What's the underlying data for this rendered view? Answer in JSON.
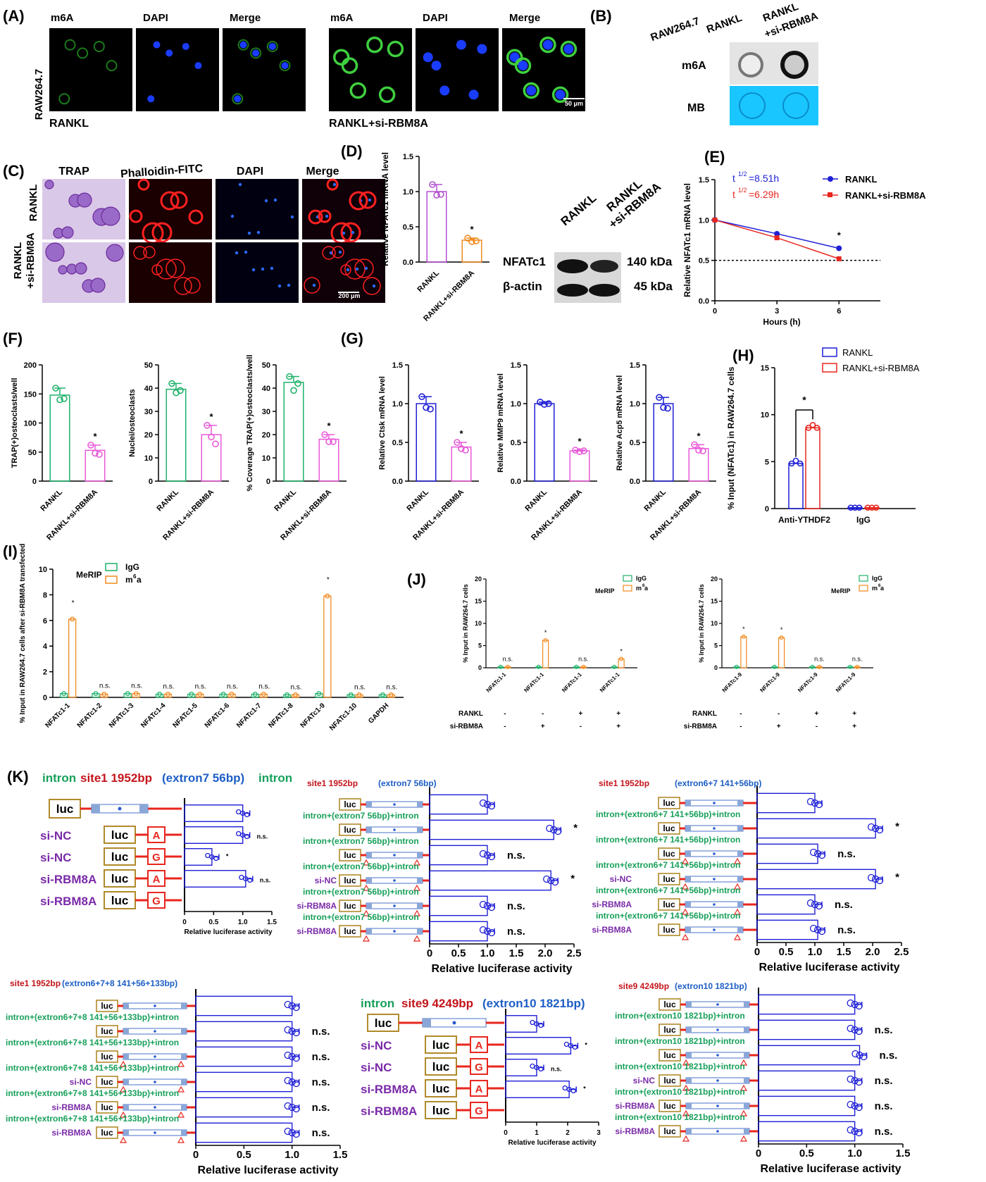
{
  "colors": {
    "blue": "#1f1fd6",
    "red": "#e8261e",
    "green": "#1fb26b",
    "violet": "#b34fd1",
    "orange": "#f08a1e",
    "pink": "#e85ad8",
    "purple": "#7a2aa8",
    "navy": "#1d5ec5",
    "teal": "#17a05a",
    "darkred": "#c4141b",
    "tan": "#b08a2a"
  },
  "common": {
    "rankl": "RANKL",
    "rankl_si": "RANKL+si-RBM8A",
    "si_nc": "si-NC",
    "si_rbm8a": "si-RBM8A",
    "luc": "luc",
    "allele_a": "A",
    "allele_g": "G",
    "star": "*",
    "ns": "n.s.",
    "luc_axis": "Relative luciferase activity",
    "plus": "+",
    "minus": "-",
    "ap": "RANKL",
    "as": "si-RBM8A"
  },
  "panelA": {
    "label": "(A)",
    "cell_line": "RAW264.7",
    "m6a": "m6A",
    "dapi": "DAPI",
    "merge": "Merge",
    "group1": "RANKL",
    "group2": "RANKL+si-RBM8A",
    "scale": "50 μm"
  },
  "panelB": {
    "label": "(B)",
    "cell_line": "RAW264.7",
    "col1": "RANKL",
    "col2a": "RANKL",
    "col2b": "+si-RBM8A",
    "row1": "m6A",
    "row2": "MB"
  },
  "panelC": {
    "label": "(C)",
    "trap": "TRAP",
    "phalloidin": "Phalloidin-FITC",
    "dapi": "DAPI",
    "merge": "Merge",
    "row1": "RANKL",
    "row2a": "RANKL",
    "row2b": "+si-RBM8A",
    "scale": "200 μm"
  },
  "panelD": {
    "label": "(D)",
    "wb_protein": "NFATc1",
    "wb_actin": "β-actin",
    "kda1": "140 kDa",
    "kda2": "45 kDa",
    "wb_col1": "RANKL",
    "wb_col2a": "RANKL",
    "wb_col2b": "+si-RBM8A"
  },
  "panelE": {
    "label": "(E)",
    "ann1": "t<sup>1/2</sup>=8.51h",
    "ann1_base": "t",
    "ann1_sup": "1/2",
    "ann1_val": "=8.51h",
    "ann2_base": "t",
    "ann2_sup": "1/2",
    "ann2_val": "=6.29h"
  },
  "panelF": {
    "label": "(F)"
  },
  "panelG": {
    "label": "(G)"
  },
  "panelH": {
    "label": "(H)"
  },
  "panelI": {
    "label": "(I)",
    "merip": "MeRIP",
    "igg": "IgG",
    "m6a_base": "m",
    "m6a_sup": "6",
    "m6a_tail": "a"
  },
  "panelJ": {
    "label": "(J)"
  },
  "panelK": {
    "label": "(K)",
    "h1_intron1": "intron",
    "h1_site": "site1 1952bp",
    "h1_ex": "(extron7 56bp)",
    "h1_intron2": "intron",
    "h2_site": "site1 1952bp",
    "h2_ex": "(extron7 56bp)",
    "h3_site": "site1 1952bp",
    "h3_ex": "(extron6+7 141+56bp)",
    "h4_site": "site1 1952bp",
    "h4_ex": "(extron6+7+8 141+56+133bp)",
    "h5_intron": "intron",
    "h5_site": "site9 4249bp",
    "h5_ex": "(extron10 1821bp)",
    "h6_site": "site9 4249bp",
    "h6_ex": "(extron10 1821bp)",
    "int7": "intron+(extron7 56bp)+intron",
    "int67": "intron+(extron6+7 141+56bp)+intron",
    "int678": "intron+(extron6+7+8 141+56+133bp)+intron",
    "int10": "intron+(extron10 1821bp)+intron"
  },
  "chart_data": [
    {
      "id": "D",
      "type": "bar",
      "categories": [
        "RANKL",
        "RANKL+si-RBM8A"
      ],
      "values": [
        1.0,
        0.31
      ],
      "points": [
        [
          1.1,
          0.95,
          0.96
        ],
        [
          0.34,
          0.29,
          0.3
        ]
      ],
      "ylabel": "Relative NFATc1 mRNA level",
      "ylim": [
        0,
        1.5
      ],
      "ticks": [
        "0.0",
        "0.5",
        "1.0",
        "1.5"
      ],
      "sig": [
        "",
        "*"
      ]
    },
    {
      "id": "E",
      "type": "line",
      "x": [
        0,
        3,
        6
      ],
      "series": [
        {
          "name": "RANKL",
          "values": [
            1.0,
            0.83,
            0.65
          ]
        },
        {
          "name": "RANKL+si-RBM8A",
          "values": [
            1.0,
            0.78,
            0.52
          ]
        }
      ],
      "xlabel": "Hours (h)",
      "ylabel": "Relative NFATc1 mRNA level",
      "ylim": [
        0,
        1.5
      ],
      "xticks": [
        "0",
        "3",
        "6"
      ],
      "yticks": [
        "0.0",
        "0.5",
        "1.0",
        "1.5"
      ],
      "sig": "*"
    },
    {
      "id": "F1",
      "type": "bar",
      "categories": [
        "RANKL",
        "RANKL+si-RBM8A"
      ],
      "values": [
        148,
        53
      ],
      "points": [
        [
          160,
          140,
          142
        ],
        [
          62,
          48,
          46
        ]
      ],
      "ylabel": "TRAP(+)osteoclasts/well",
      "ylim": [
        0,
        200
      ],
      "ticks": [
        "0",
        "50",
        "100",
        "150",
        "200"
      ],
      "sig": [
        "",
        "*"
      ]
    },
    {
      "id": "F2",
      "type": "bar",
      "categories": [
        "RANKL",
        "RANKL+si-RBM8A"
      ],
      "values": [
        39.5,
        20
      ],
      "points": [
        [
          42,
          38,
          39
        ],
        [
          24,
          19,
          16
        ]
      ],
      "ylabel": "Nuclei/osteoclasts",
      "ylim": [
        0,
        50
      ],
      "ticks": [
        "0",
        "10",
        "20",
        "30",
        "40",
        "50"
      ],
      "sig": [
        "",
        "*"
      ]
    },
    {
      "id": "F3",
      "type": "bar",
      "categories": [
        "RANKL",
        "RANKL+si-RBM8A"
      ],
      "values": [
        42.5,
        18
      ],
      "points": [
        [
          45,
          39,
          42
        ],
        [
          20,
          17,
          17
        ]
      ],
      "ylabel": "% Coverage TRAP(+)osteoclasts/well",
      "ylim": [
        0,
        50
      ],
      "ticks": [
        "0",
        "10",
        "20",
        "30",
        "40",
        "50"
      ],
      "sig": [
        "",
        "*"
      ]
    },
    {
      "id": "G1",
      "type": "bar",
      "categories": [
        "RANKL",
        "RANKL+si-RBM8A"
      ],
      "values": [
        1.0,
        0.44
      ],
      "points": [
        [
          1.09,
          0.95,
          0.93
        ],
        [
          0.5,
          0.42,
          0.4
        ]
      ],
      "ylabel": "Relative Ctsk mRNA level",
      "ylim": [
        0,
        1.5
      ],
      "ticks": [
        "0.0",
        "0.5",
        "1.0",
        "1.5"
      ],
      "sig": [
        "",
        "*"
      ]
    },
    {
      "id": "G2",
      "type": "bar",
      "categories": [
        "RANKL",
        "RANKL+si-RBM8A"
      ],
      "values": [
        1.0,
        0.39
      ],
      "points": [
        [
          1.02,
          0.99,
          1.0
        ],
        [
          0.4,
          0.38,
          0.39
        ]
      ],
      "ylabel": "Relative MMP9 mRNA level",
      "ylim": [
        0,
        1.5
      ],
      "ticks": [
        "0.0",
        "0.5",
        "1.0",
        "1.5"
      ],
      "sig": [
        "",
        "*"
      ]
    },
    {
      "id": "G3",
      "type": "bar",
      "categories": [
        "RANKL",
        "RANKL+si-RBM8A"
      ],
      "values": [
        1.0,
        0.42
      ],
      "points": [
        [
          1.08,
          0.95,
          0.94
        ],
        [
          0.47,
          0.4,
          0.39
        ]
      ],
      "ylabel": "Relative Acp5 mRNA level",
      "ylim": [
        0,
        1.5
      ],
      "ticks": [
        "0.0",
        "0.5",
        "1.0",
        "1.5"
      ],
      "sig": [
        "",
        "*"
      ]
    },
    {
      "id": "H",
      "type": "bar",
      "categories": [
        "Anti-YTHDF2",
        "IgG"
      ],
      "series": [
        {
          "name": "RANKL",
          "values": [
            4.8,
            0.1
          ]
        },
        {
          "name": "RANKL+si-RBM8A",
          "values": [
            8.6,
            0.1
          ]
        }
      ],
      "ylabel": "% Input (NFATc1) in RAW264.7 cells",
      "ylim": [
        0,
        15
      ],
      "ticks": [
        "0",
        "5",
        "10",
        "15"
      ],
      "sig": "*"
    },
    {
      "id": "I",
      "type": "bar",
      "categories": [
        "NFATc1-1",
        "NFATc1-2",
        "NFATc1-3",
        "NFATc1-4",
        "NFATc1-5",
        "NFATc1-6",
        "NFATc1-7",
        "NFATc1-8",
        "NFATc1-9",
        "NFATc1-10",
        "GAPDH"
      ],
      "series": [
        {
          "name": "IgG",
          "values": [
            0.3,
            0.3,
            0.3,
            0.25,
            0.25,
            0.25,
            0.25,
            0.2,
            0.3,
            0.2,
            0.2
          ]
        },
        {
          "name": "m6a",
          "values": [
            6.1,
            0.25,
            0.3,
            0.25,
            0.25,
            0.25,
            0.25,
            0.2,
            7.9,
            0.2,
            0.2
          ]
        }
      ],
      "ylabel": "% Input in RAW264.7 cells after si-RBM8A transfected",
      "ylim": [
        0,
        10
      ],
      "ticks": [
        "0",
        "2",
        "4",
        "6",
        "8",
        "10"
      ],
      "sig": [
        "*",
        "n.s.",
        "n.s.",
        "n.s.",
        "n.s.",
        "n.s.",
        "n.s.",
        "n.s.",
        "*",
        "n.s.",
        "n.s."
      ]
    },
    {
      "id": "J1",
      "type": "bar",
      "categories": [
        "NFATc1-1",
        "NFATc1-1",
        "NFATc1-1",
        "NFATc1-1"
      ],
      "series": [
        {
          "name": "IgG",
          "values": [
            0.2,
            0.2,
            0.2,
            0.2
          ]
        },
        {
          "name": "m6a",
          "values": [
            0.2,
            6.2,
            0.2,
            2.0
          ]
        }
      ],
      "ylabel": "% Input in RAW264.7 cells",
      "ylim": [
        0,
        20
      ],
      "ticks": [
        "0",
        "5",
        "10",
        "15",
        "20"
      ],
      "rankl": [
        "-",
        "-",
        "+",
        "+"
      ],
      "si": [
        "-",
        "+",
        "-",
        "+"
      ],
      "sig": [
        "n.s.",
        "*",
        "n.s.",
        "*"
      ]
    },
    {
      "id": "J2",
      "type": "bar",
      "categories": [
        "NFATc1-9",
        "NFATc1-9",
        "NFATc1-9",
        "NFATc1-9"
      ],
      "series": [
        {
          "name": "IgG",
          "values": [
            0.2,
            0.2,
            0.2,
            0.2
          ]
        },
        {
          "name": "m6a",
          "values": [
            7.0,
            6.8,
            0.2,
            0.2
          ]
        }
      ],
      "ylabel": "% Input in RAW264.7 cells",
      "ylim": [
        0,
        20
      ],
      "ticks": [
        "0",
        "5",
        "10",
        "15",
        "20"
      ],
      "rankl": [
        "-",
        "-",
        "+",
        "+"
      ],
      "si": [
        "-",
        "+",
        "-",
        "+"
      ],
      "sig": [
        "*",
        "*",
        "n.s.",
        "n.s."
      ]
    },
    {
      "id": "K1",
      "type": "bar",
      "orientation": "horizontal",
      "values": [
        1.0,
        1.0,
        0.47,
        1.05
      ],
      "sig": [
        "",
        "n.s.",
        "*",
        "n.s."
      ],
      "xlim": [
        0,
        1.5
      ],
      "ticks": [
        "0",
        "0.5",
        "1.0",
        "1.5"
      ]
    },
    {
      "id": "K2",
      "type": "bar",
      "orientation": "horizontal",
      "values": [
        1.0,
        2.15,
        1.0,
        2.1,
        1.0,
        1.0
      ],
      "sig": [
        "",
        "*",
        "n.s.",
        "*",
        "n.s.",
        "n.s."
      ],
      "xlim": [
        0,
        2.5
      ],
      "ticks": [
        "0",
        "0.5",
        "1.0",
        "1.5",
        "2.0",
        "2.5"
      ]
    },
    {
      "id": "K3",
      "type": "bar",
      "orientation": "horizontal",
      "values": [
        1.0,
        2.05,
        1.05,
        2.05,
        1.0,
        1.05
      ],
      "sig": [
        "",
        "*",
        "n.s.",
        "*",
        "n.s.",
        "n.s."
      ],
      "xlim": [
        0,
        2.5
      ],
      "ticks": [
        "0",
        "0.5",
        "1.0",
        "1.5",
        "2.0",
        "2.5"
      ]
    },
    {
      "id": "K4",
      "type": "bar",
      "orientation": "horizontal",
      "values": [
        1.0,
        1.0,
        1.0,
        1.0,
        1.0,
        1.0
      ],
      "sig": [
        "",
        "n.s.",
        "n.s.",
        "n.s.",
        "n.s.",
        "n.s."
      ],
      "xlim": [
        0,
        1.5
      ],
      "ticks": [
        "0",
        "0.5",
        "1.0",
        "1.5"
      ]
    },
    {
      "id": "K5",
      "type": "bar",
      "orientation": "horizontal",
      "values": [
        1.0,
        2.1,
        1.0,
        2.05
      ],
      "sig": [
        "",
        "*",
        "n.s.",
        "*"
      ],
      "xlim": [
        0,
        3
      ],
      "ticks": [
        "0",
        "1",
        "2",
        "3"
      ]
    },
    {
      "id": "K6",
      "type": "bar",
      "orientation": "horizontal",
      "values": [
        1.0,
        1.0,
        1.05,
        1.0,
        1.0,
        1.0
      ],
      "sig": [
        "",
        "n.s.",
        "n.s.",
        "n.s.",
        "n.s.",
        "n.s."
      ],
      "xlim": [
        0,
        1.5
      ],
      "ticks": [
        "0",
        "0.5",
        "1.0",
        "1.5"
      ]
    }
  ]
}
